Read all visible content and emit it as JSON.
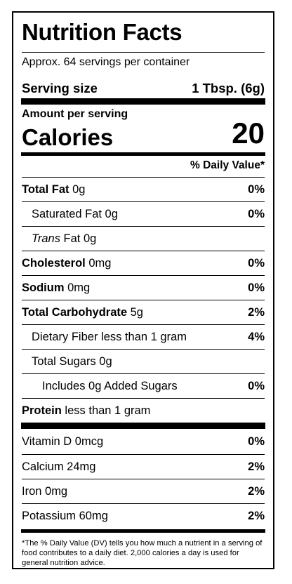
{
  "label": {
    "title": "Nutrition Facts",
    "servings_per_container": "Approx. 64 servings per container",
    "serving_size_label": "Serving size",
    "serving_size_value": "1 Tbsp. (6g)",
    "amount_per_serving": "Amount per serving",
    "calories_label": "Calories",
    "calories_value": "20",
    "daily_value_header": "% Daily Value*",
    "nutrients": [
      {
        "name": "Total Fat",
        "amount": " 0g",
        "dv": "0%"
      },
      {
        "name": "Saturated Fat 0g",
        "amount": "",
        "dv": "0%"
      },
      {
        "name": "Trans",
        "amount": " Fat 0g",
        "dv": ""
      },
      {
        "name": "Cholesterol",
        "amount": " 0mg",
        "dv": "0%"
      },
      {
        "name": "Sodium",
        "amount": " 0mg",
        "dv": "0%"
      },
      {
        "name": "Total Carbohydrate",
        "amount": " 5g",
        "dv": "2%"
      },
      {
        "name": "Dietary Fiber less than 1 gram",
        "amount": "",
        "dv": "4%"
      },
      {
        "name": "Total Sugars 0g",
        "amount": "",
        "dv": ""
      },
      {
        "name": "Includes 0g Added Sugars",
        "amount": "",
        "dv": "0%"
      },
      {
        "name": "Protein",
        "amount": " less than 1 gram",
        "dv": ""
      }
    ],
    "vitamins": [
      {
        "name": "Vitamin D 0mcg",
        "dv": "0%"
      },
      {
        "name": "Calcium 24mg",
        "dv": "2%"
      },
      {
        "name": "Iron 0mg",
        "dv": "2%"
      },
      {
        "name": "Potassium 60mg",
        "dv": "2%"
      }
    ],
    "footnote": "*The % Daily Value (DV) tells you how much a nutrient in a serving of food contributes to a daily diet. 2,000 calories a day is used for general nutrition advice."
  }
}
